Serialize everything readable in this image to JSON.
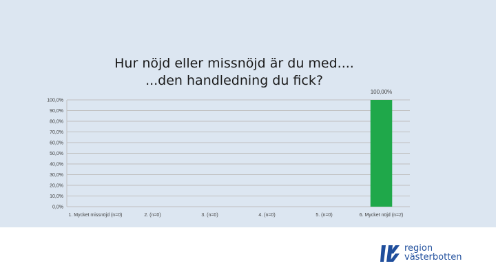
{
  "chart_data": {
    "type": "bar",
    "title_lines": [
      "Hur nöjd eller missnöjd är du med....",
      "...den handledning du fick?"
    ],
    "categories": [
      "1. Mycket missnöjd (n=0)",
      "2. (n=0)",
      "3. (n=0)",
      "4. (n=0)",
      "5. (n=0)",
      "6. Mycket nöjd (n=2)"
    ],
    "values": [
      0,
      0,
      0,
      0,
      0,
      100
    ],
    "data_labels": [
      "",
      "",
      "",
      "",
      "",
      "100,00%"
    ],
    "y_ticks": [
      "0,0%",
      "10,0%",
      "20,0%",
      "30,0%",
      "40,0%",
      "50,0%",
      "60,0%",
      "70,0%",
      "80,0%",
      "90,0%",
      "100,0%"
    ],
    "ylim": [
      0,
      100
    ],
    "grid": true,
    "bar_color": "#1fa84a",
    "grid_color": "#bfbfbf"
  },
  "logo": {
    "line1": "region",
    "line2": "västerbotten",
    "color": "#1f4e9c"
  }
}
